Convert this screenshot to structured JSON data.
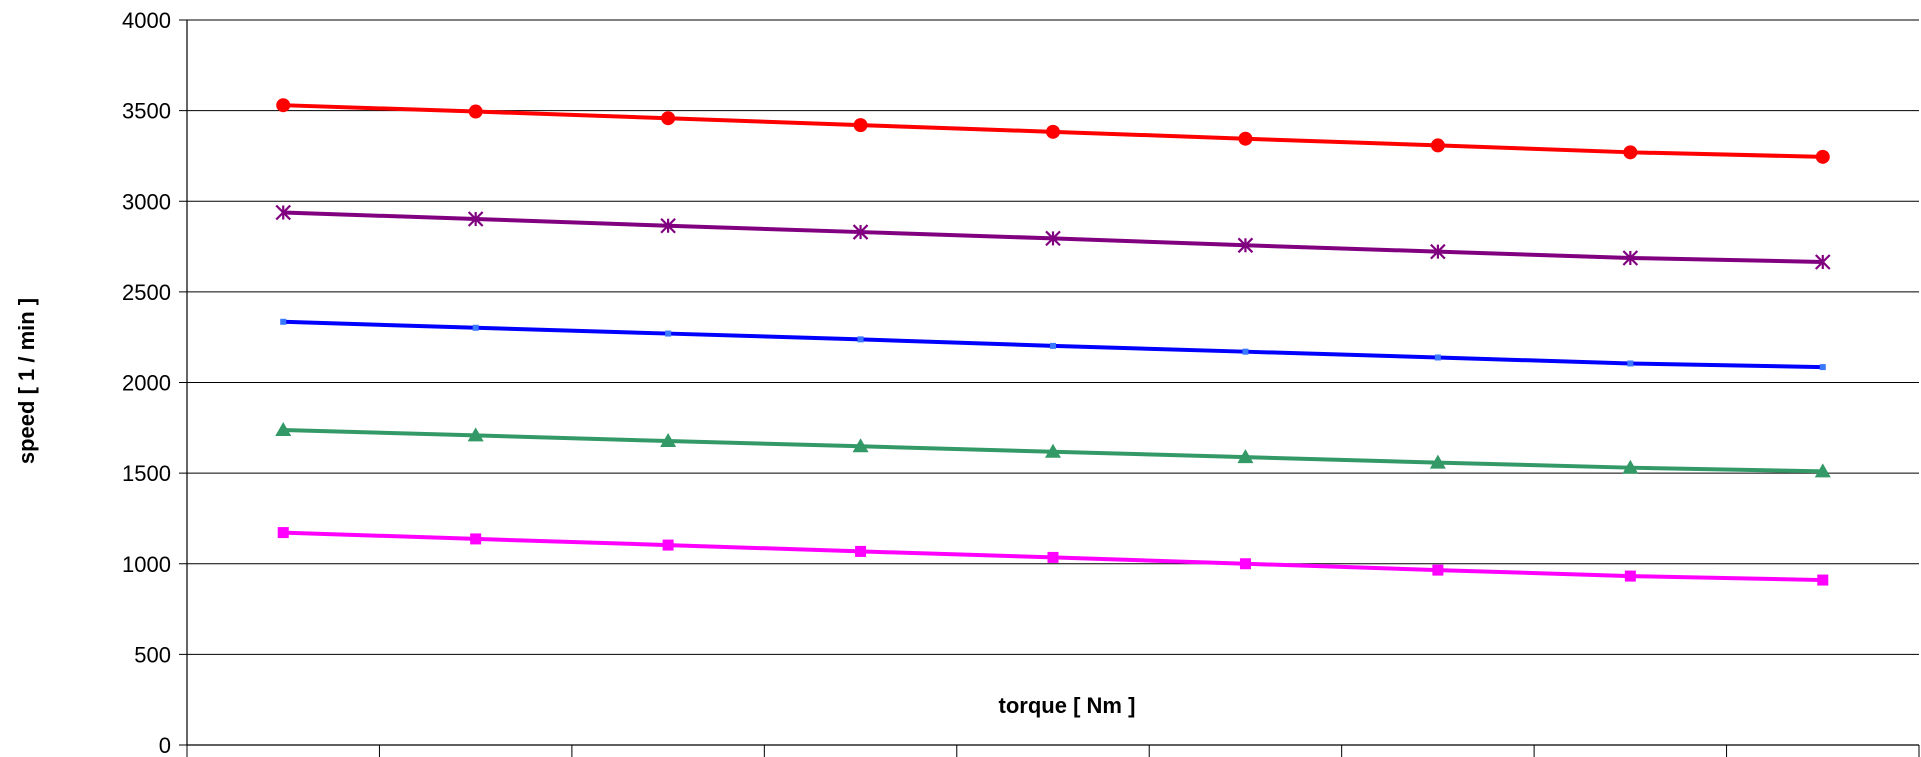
{
  "chart_data": {
    "type": "line",
    "title": "",
    "xlabel": "torque [ Nm ]",
    "ylabel": "speed [ 1 / min ]",
    "ylim": [
      0,
      4000
    ],
    "yticks": [
      0,
      500,
      1000,
      1500,
      2000,
      2500,
      3000,
      3500,
      4000
    ],
    "x_category_count": 9,
    "grid": "horizontal",
    "legend": "none",
    "series": [
      {
        "color": "#ff0000",
        "marker": "circle",
        "values": [
          3530,
          3495,
          3458,
          3420,
          3383,
          3345,
          3308,
          3270,
          3245
        ]
      },
      {
        "color": "#800080",
        "marker": "asterisk",
        "values": [
          2938,
          2902,
          2865,
          2830,
          2795,
          2757,
          2722,
          2687,
          2665
        ]
      },
      {
        "color": "#0000ff",
        "marker": "square-small",
        "values": [
          2335,
          2302,
          2270,
          2238,
          2202,
          2170,
          2138,
          2105,
          2085
        ]
      },
      {
        "color": "#339966",
        "marker": "triangle",
        "values": [
          1738,
          1708,
          1677,
          1648,
          1618,
          1588,
          1558,
          1530,
          1510
        ]
      },
      {
        "color": "#ff00ff",
        "marker": "square",
        "values": [
          1172,
          1137,
          1103,
          1068,
          1035,
          1000,
          965,
          932,
          910
        ]
      }
    ]
  }
}
